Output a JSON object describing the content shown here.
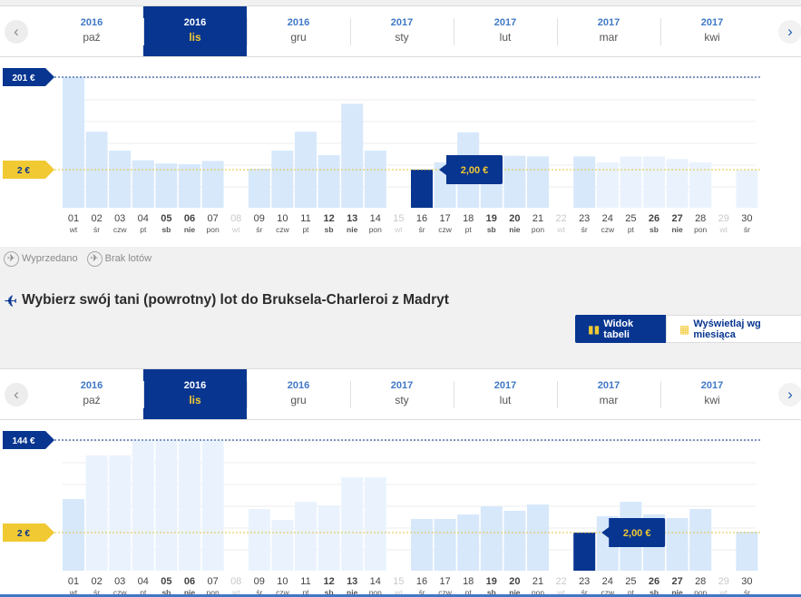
{
  "months": [
    {
      "year": "2016",
      "name": "paź",
      "selected": false
    },
    {
      "year": "2016",
      "name": "lis",
      "selected": true
    },
    {
      "year": "2016",
      "name": "gru",
      "selected": false
    },
    {
      "year": "2017",
      "name": "sty",
      "selected": false
    },
    {
      "year": "2017",
      "name": "lut",
      "selected": false
    },
    {
      "year": "2017",
      "name": "mar",
      "selected": false
    },
    {
      "year": "2017",
      "name": "kwi",
      "selected": false
    }
  ],
  "nav": {
    "prev": "‹",
    "next": "›"
  },
  "colors": {
    "brand": "#073590",
    "accent_yellow": "#f1c932",
    "bar": "#d7e8fb",
    "bar_faded": "#eaf3fd",
    "bar_selected": "#073590"
  },
  "days": [
    {
      "d": "01",
      "w": "wt"
    },
    {
      "d": "02",
      "w": "śr"
    },
    {
      "d": "03",
      "w": "czw"
    },
    {
      "d": "04",
      "w": "pt"
    },
    {
      "d": "05",
      "w": "sb",
      "bold": true
    },
    {
      "d": "06",
      "w": "nie",
      "bold": true
    },
    {
      "d": "07",
      "w": "pon"
    },
    {
      "d": "08",
      "w": "wt",
      "muted": true
    },
    {
      "d": "09",
      "w": "śr"
    },
    {
      "d": "10",
      "w": "czw"
    },
    {
      "d": "11",
      "w": "pt"
    },
    {
      "d": "12",
      "w": "sb",
      "bold": true
    },
    {
      "d": "13",
      "w": "nie",
      "bold": true
    },
    {
      "d": "14",
      "w": "pon"
    },
    {
      "d": "15",
      "w": "wt",
      "muted": true
    },
    {
      "d": "16",
      "w": "śr"
    },
    {
      "d": "17",
      "w": "czw"
    },
    {
      "d": "18",
      "w": "pt"
    },
    {
      "d": "19",
      "w": "sb",
      "bold": true
    },
    {
      "d": "20",
      "w": "nie",
      "bold": true
    },
    {
      "d": "21",
      "w": "pon"
    },
    {
      "d": "22",
      "w": "wt",
      "muted": true
    },
    {
      "d": "23",
      "w": "śr"
    },
    {
      "d": "24",
      "w": "czw"
    },
    {
      "d": "25",
      "w": "pt"
    },
    {
      "d": "26",
      "w": "sb",
      "bold": true
    },
    {
      "d": "27",
      "w": "nie",
      "bold": true
    },
    {
      "d": "28",
      "w": "pon"
    },
    {
      "d": "29",
      "w": "wt",
      "muted": true
    },
    {
      "d": "30",
      "w": "śr"
    }
  ],
  "outbound": {
    "max_label": "201 €",
    "min_label": "2 €",
    "max_value": 201,
    "min_value": 2,
    "tooltip": "2,00 €",
    "selected_day": "16",
    "chart_data": {
      "type": "bar",
      "categories": [
        "01",
        "02",
        "03",
        "04",
        "05",
        "06",
        "07",
        "08",
        "09",
        "10",
        "11",
        "12",
        "13",
        "14",
        "15",
        "16",
        "17",
        "18",
        "19",
        "20",
        "21",
        "22",
        "23",
        "24",
        "25",
        "26",
        "27",
        "28",
        "29",
        "30"
      ],
      "values": [
        201,
        117,
        88,
        73,
        68,
        67,
        72,
        null,
        60,
        88,
        117,
        81,
        160,
        88,
        null,
        2,
        70,
        116,
        80,
        80,
        79,
        null,
        79,
        70,
        79,
        79,
        75,
        70,
        null,
        58
      ],
      "faded": [
        false,
        false,
        false,
        false,
        false,
        false,
        false,
        false,
        false,
        false,
        false,
        false,
        false,
        false,
        false,
        false,
        false,
        false,
        false,
        false,
        false,
        false,
        false,
        true,
        true,
        true,
        true,
        true,
        false,
        true
      ],
      "ylim": [
        0,
        201
      ]
    }
  },
  "legend": {
    "sold_out": "Wyprzedano",
    "no_flights": "Brak lotów"
  },
  "return_title": "Wybierz swój tani (powrotny) lot do Bruksela-Charleroi z Madryt",
  "view_toggle": {
    "table": "Widok tabeli",
    "month": "Wyświetlaj wg miesiąca"
  },
  "return": {
    "max_label": "144 €",
    "min_label": "2 €",
    "max_value": 144,
    "min_value": 2,
    "tooltip": "2,00 €",
    "selected_day": "23",
    "chart_data": {
      "type": "bar",
      "categories": [
        "01",
        "02",
        "03",
        "04",
        "05",
        "06",
        "07",
        "08",
        "09",
        "10",
        "11",
        "12",
        "13",
        "14",
        "15",
        "16",
        "17",
        "18",
        "19",
        "20",
        "21",
        "22",
        "23",
        "24",
        "25",
        "26",
        "27",
        "28",
        "29",
        "30"
      ],
      "values": [
        79,
        127,
        127,
        144,
        144,
        144,
        144,
        null,
        68,
        56,
        76,
        72,
        103,
        103,
        null,
        57,
        57,
        62,
        71,
        66,
        73,
        null,
        2,
        60,
        76,
        62,
        58,
        68,
        null,
        43
      ],
      "faded": [
        false,
        true,
        true,
        true,
        true,
        true,
        true,
        false,
        true,
        true,
        true,
        true,
        true,
        true,
        false,
        false,
        false,
        false,
        false,
        false,
        false,
        false,
        false,
        false,
        false,
        false,
        false,
        false,
        false,
        false
      ],
      "ylim": [
        0,
        144
      ]
    }
  }
}
